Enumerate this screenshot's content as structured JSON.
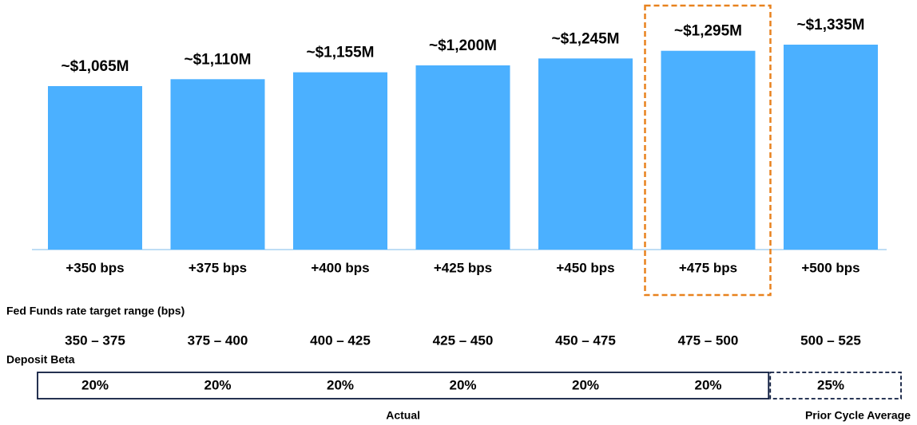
{
  "chart_data": {
    "type": "bar",
    "categories": [
      "+350 bps",
      "+375 bps",
      "+400 bps",
      "+425 bps",
      "+450 bps",
      "+475 bps",
      "+500 bps"
    ],
    "values": [
      1065,
      1110,
      1155,
      1200,
      1245,
      1295,
      1335
    ],
    "value_labels": [
      "~$1,065M",
      "~$1,110M",
      "~$1,155M",
      "~$1,200M",
      "~$1,245M",
      "~$1,295M",
      "~$1,335M"
    ],
    "color": "#4bb0ff",
    "highlight": {
      "category": 5,
      "color": "#e8821e"
    },
    "fed_funds": {
      "label": "Fed Funds rate target range (bps)",
      "ranges": [
        "350 – 375",
        "375 – 400",
        "400 – 425",
        "425 – 450",
        "450 – 475",
        "475 – 500",
        "500 – 525"
      ]
    },
    "deposit_beta": {
      "label": "Deposit Beta",
      "values": [
        "20%",
        "20%",
        "20%",
        "20%",
        "20%",
        "20%",
        "25%"
      ]
    },
    "groups": [
      {
        "label": "Actual",
        "span": 6
      },
      {
        "label": "Prior Cycle Average",
        "span": 1
      }
    ]
  }
}
